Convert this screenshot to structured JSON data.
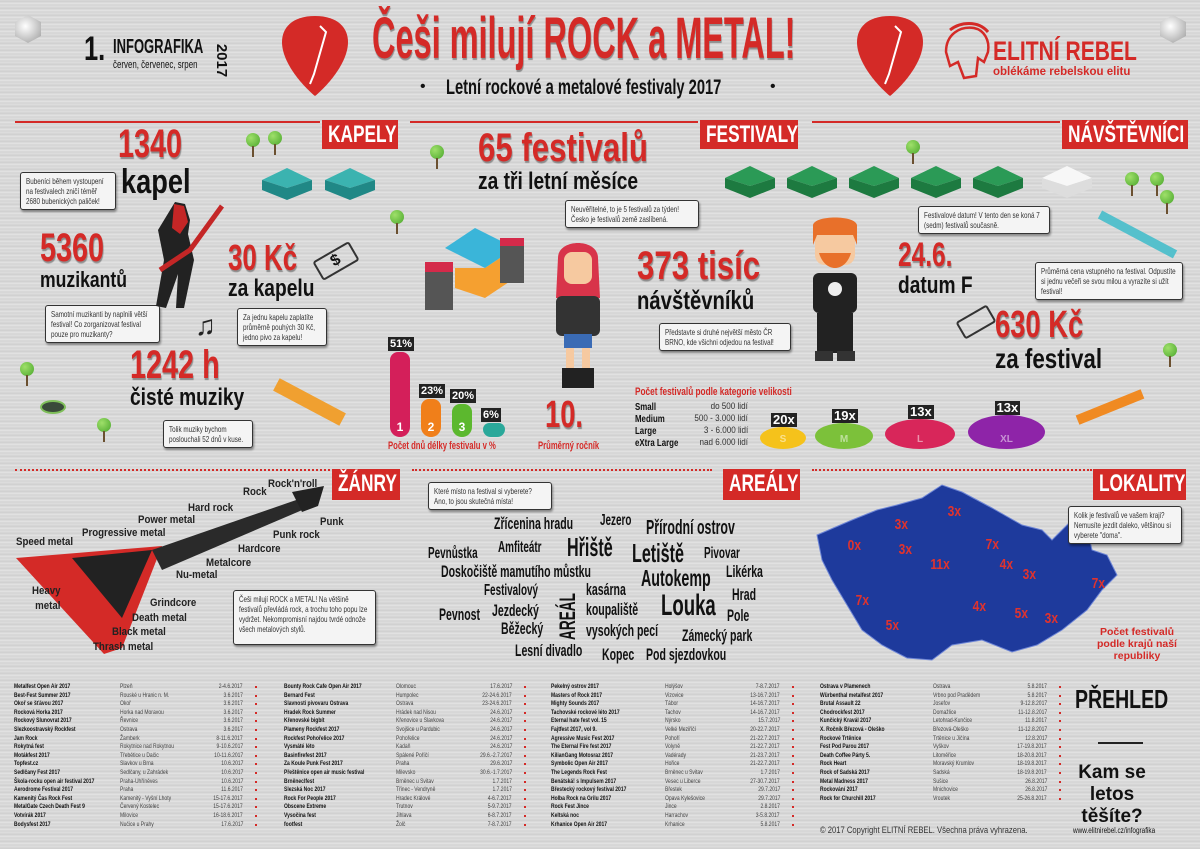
{
  "header": {
    "number": "1.",
    "label": "INFOGRAFIKA",
    "year": "2017",
    "months": "červen, červenec, srpen",
    "title": "Češi milují ROCK a METAL!",
    "subtitle": "Letní rockové a metalové festivaly 2017",
    "logo": {
      "name": "ELITNÍ REBEL",
      "tagline": "oblékáme rebelskou elitu"
    }
  },
  "sections": {
    "bands": "KAPELY",
    "festivals": "FESTIVALY",
    "visitors": "NÁVŠTĚVNÍCI",
    "genres": "ŽÁNRY",
    "venues": "AREÁLY",
    "locations": "LOKALITY"
  },
  "bands": {
    "count": "1340",
    "count_label": "kapel",
    "count_note": "Bubeníci během vystoupení na festivalech zničí téměř 2680 bubenických paliček!",
    "musicians": "5360",
    "musicians_label": "muzikantů",
    "musicians_note": "Samotní muzikanti by naplnili větší festival! Co zorganizovat festival pouze pro muzikanty?",
    "price": "30 Kč",
    "price_label": "za kapelu",
    "price_note": "Za jednu kapelu zaplatíte průměrně pouhých 30 Kč, jedno pivo za kapelu!",
    "hours": "1242 h",
    "hours_label": "čisté muziky",
    "hours_note": "Tolik muziky bychom poslouchali 52 dnů v kuse."
  },
  "festivals": {
    "count": "65 festivalů",
    "count_label": "za tři letní měsíce",
    "count_note": "Neuvěřitelné, to je 5 festivalů za týden! Česko je festivalů země zaslíbená.",
    "visitors": "373 tisíc",
    "visitors_label": "návštěvníků",
    "visitors_note": "Představte si druhé největší město ČR BRNO, kde všichni odjedou na festival!",
    "edition": "10.",
    "edition_label": "Průměrný ročník"
  },
  "chart_data": [
    {
      "type": "bar",
      "title": "Počet dnů délky festivalu v %",
      "categories": [
        "1",
        "2",
        "3",
        ""
      ],
      "values": [
        51,
        23,
        20,
        6
      ],
      "labels": [
        "51%",
        "23%",
        "20%",
        "6%"
      ],
      "colors": [
        "#d41f5a",
        "#f07f1a",
        "#5cb82e",
        "#2aa89a"
      ]
    },
    {
      "type": "table",
      "title": "Počet festivalů podle kategorie velikosti",
      "rows": [
        {
          "name": "Small",
          "range": "do 500 lidí",
          "count": "20x",
          "short": "S",
          "color": "#f5c21b"
        },
        {
          "name": "Medium",
          "range": "500 - 3.000 lidí",
          "count": "19x",
          "short": "M",
          "color": "#7cc13a"
        },
        {
          "name": "Large",
          "range": "3 - 6.000 lidí",
          "count": "13x",
          "short": "L",
          "color": "#d8265a"
        },
        {
          "name": "eXtra Large",
          "range": "nad 6.000 lidí",
          "count": "13x",
          "short": "XL",
          "color": "#8e24a8"
        }
      ]
    }
  ],
  "visitors": {
    "date": "24.6.",
    "date_label": "datum F",
    "date_note": "Festivalové datum! V tento den se koná 7 (sedm) festivalů současně.",
    "price": "630 Kč",
    "price_label": "za festival",
    "price_note": "Průměrná cena vstupného na festival. Odpustíte si jednu večeři se svou milou a vyrazíte si užít festival!"
  },
  "genres": {
    "note": "Češi milují ROCK a METAL! Na většině festivalů převládá rock, a trochu toho popu lze vydržet. Nekompromisní najdou tvrdé odnože všech metalových stylů.",
    "items": [
      "Rock'n'roll",
      "Rock",
      "Hard rock",
      "Power metal",
      "Progressive metal",
      "Speed metal",
      "Punk",
      "Punk rock",
      "Hardcore",
      "Metalcore",
      "Nu-metal",
      "Heavy metal",
      "Grindcore",
      "Death metal",
      "Black metal",
      "Thrash metal"
    ]
  },
  "venues": {
    "note": "Které místo na festival si vyberete? Ano, to jsou skutečná místa!",
    "words": [
      "Zřícenina hradu",
      "Jezero",
      "Přírodní ostrov",
      "Pevnůstka",
      "Amfiteátr",
      "Hřiště",
      "Letiště",
      "Pivovar",
      "Doskočiště mamutího můstku",
      "Autokemp",
      "Likérka",
      "Festivalový",
      "AREÁL",
      "kasárna",
      "Louka",
      "Hrad",
      "Pevnost",
      "Jezdecký",
      "koupaliště",
      "Pole",
      "Běžecký",
      "vysokých pecí",
      "Zámecký park",
      "Lesní divadlo",
      "Kopec",
      "Pod sjezdovkou"
    ]
  },
  "locations": {
    "note": "Kolik je festivalů ve vašem kraji? Nemusíte jezdit daleko, většinou si vyberete \"doma\".",
    "caption": "Počet festivalů podle krajů naší republiky",
    "map_color": "#1e3a9c",
    "regions": [
      "3x",
      "3x",
      "0x",
      "3x",
      "11x",
      "7x",
      "4x",
      "3x",
      "7x",
      "7x",
      "4x",
      "5x",
      "3x",
      "5x"
    ]
  },
  "overview": {
    "title": "PŘEHLED",
    "question": "Kam se letos těšíte?",
    "url": "www.elitnirebel.cz/infografika",
    "copyright": "© 2017 Copyright ELITNÍ REBEL. Všechna práva vyhrazena.",
    "festivals": [
      [
        "Metalfest Open Air 2017",
        "Plzeň",
        "2-4.6.2017"
      ],
      [
        "Best-Fest Summer 2017",
        "Rouské u Hranic n. M.",
        "3.6.2017"
      ],
      [
        "Okoř se šťávou 2017",
        "Okoř",
        "3.6.2017"
      ],
      [
        "Rocková Horka 2017",
        "Horka nad Moravou",
        "3.6.2017"
      ],
      [
        "Rockový Slunovrat 2017",
        "Řevnice",
        "3.6.2017"
      ],
      [
        "Slezkoostravský Rockfest",
        "Ostrava",
        "3.6.2017"
      ],
      [
        "Jam Rock",
        "Žamberk",
        "8-11.6.2017"
      ],
      [
        "Rokytná fest",
        "Rokytnice nad Rokytnou",
        "9-10.6.2017"
      ],
      [
        "Motákfest 2017",
        "Třebětice u Dačic",
        "10-11.6.2017"
      ],
      [
        "Topfest.cz",
        "Slavkov u Brna",
        "10.6.2017"
      ],
      [
        "Sedlčany Fest 2017",
        "Sedlčany, u Zahrádek",
        "10.6.2017"
      ],
      [
        "Škola-rocku open air festival 2017",
        "Praha-Uhříněves",
        "10.6.2017"
      ],
      [
        "Aerodrome Festival 2017",
        "Praha",
        "11.6.2017"
      ],
      [
        "Kamenitý Čas Rock Fest",
        "Kamenitý - Vyšní Lhoty",
        "15-17.6.2017"
      ],
      [
        "MetalGate Czech Death Fest 9",
        "Červený Kostelec",
        "15-17.6.2017"
      ],
      [
        "Votvírák 2017",
        "Milovice",
        "16-18.6.2017"
      ],
      [
        "Bodysfest 2017",
        "Nučice u Prahy",
        "17.6.2017"
      ],
      [
        "Bounty Rock Cafe Open Air 2017",
        "Olomouc",
        "17.6.2017"
      ],
      [
        "Bernard Fest",
        "Humpolec",
        "22-24.6.2017"
      ],
      [
        "Slavnosti pivovaru Ostrava",
        "Ostrava",
        "23-24.6.2017"
      ],
      [
        "Hradek Rock Summer",
        "Hrádek nad Nisou",
        "24.6.2017"
      ],
      [
        "Křenovské bigbít",
        "Křenovice u Slavkova",
        "24.6.2017"
      ],
      [
        "Plameny Rockfest 2017",
        "Svojšice u Pardubic",
        "24.6.2017"
      ],
      [
        "Rockfest Pohořelice 2017",
        "Pohořelice",
        "24.6.2017"
      ],
      [
        "Vysmáté léto",
        "Kadaň",
        "24.6.2017"
      ],
      [
        "Basinfirefest 2017",
        "Spálené Poříčí",
        "29.6.-2.7.2017"
      ],
      [
        "Za Koule Punk Fest 2017",
        "Praha",
        "29.6.2017"
      ],
      [
        "Přeštěnice open air music festival",
        "Milevsko",
        "30.6.-1.7.2017"
      ],
      [
        "Brněneclfest",
        "Brněnec u Svitav",
        "1.7.2017"
      ],
      [
        "Slezská Noc 2017",
        "Třinec - Vendryně",
        "1.7.2017"
      ],
      [
        "Rock For People 2017",
        "Hradec Králové",
        "4-6.7.2017"
      ],
      [
        "Obscene Extreme",
        "Trutnov",
        "5-9.7.2017"
      ],
      [
        "Vysočina fest",
        "Jihlava",
        "6-8.7.2017"
      ],
      [
        "footfest",
        "Žolč",
        "7-8.7.2017"
      ],
      [
        "Pekelný ostrov 2017",
        "Holýšov",
        "7-8.7.2017"
      ],
      [
        "Masters of Rock 2017",
        "Vizovice",
        "13-16.7.2017"
      ],
      [
        "Mighty Sounds 2017",
        "Tábor",
        "14-16.7.2017"
      ],
      [
        "Tachovské rockové léto 2017",
        "Tachov",
        "14-16.7.2017"
      ],
      [
        "Eternal hate fest vol. 15",
        "Nýrsko",
        "15.7.2017"
      ],
      [
        "Fajtfest 2017, vol 9.",
        "Velké Meziříčí",
        "20-22.7.2017"
      ],
      [
        "Agressive Music Fest 2017",
        "Pohoří",
        "21-22.7.2017"
      ],
      [
        "The Eternal Fire fest 2017",
        "Volyně",
        "21-22.7.2017"
      ],
      [
        "KilianGang Motosraz 2017",
        "Vadérady",
        "21-23.7.2017"
      ],
      [
        "Symbolic Open Air 2017",
        "Hořice",
        "21-22.7.2017"
      ],
      [
        "The Legends Rock Fest",
        "Brněnec u Svitav",
        "1.7.2017"
      ],
      [
        "Benátská! s Impulsem 2017",
        "Vesec u Liberce",
        "27-30.7.2017"
      ],
      [
        "Břestecký rockový festival 2017",
        "Břestek",
        "29.7.2017"
      ],
      [
        "Holba Rock na Grilu 2017",
        "Opava Kylešovice",
        "29.7.2017"
      ],
      [
        "Rock Fest Jince",
        "Jince",
        "2.8.2017"
      ],
      [
        "Keltská noc",
        "Harrachov",
        "3-5.8.2017"
      ],
      [
        "Krhanice Open Air 2017",
        "Krhanice",
        "5.8.2017"
      ],
      [
        "Ostrava v Plamenech",
        "Ostrava",
        "5.8.2017"
      ],
      [
        "Würbenthal metalfest 2017",
        "Vrbno pod Pradědem",
        "5.8.2017"
      ],
      [
        "Brutal Assault 22",
        "Josefov",
        "9-12.8.2017"
      ],
      [
        "Chodrockfest 2017",
        "Domažlice",
        "11-12.8.2017"
      ],
      [
        "Kunčický Kravál 2017",
        "Letohrad-Kunčice",
        "11.8.2017"
      ],
      [
        "X. Ročník Březová - Oleško",
        "Březová-Oleško",
        "11-12.8.2017"
      ],
      [
        "Rockové Trtěnice",
        "Trtěnice u Jičína",
        "12.8.2017"
      ],
      [
        "Fest Pod Parou 2017",
        "Vyškov",
        "17-19.8.2017"
      ],
      [
        "Death Coffee Párty 5.",
        "Litoměřice",
        "18-20.8.2017"
      ],
      [
        "Rock Heart",
        "Moravský Krumlov",
        "18-19.8.2017"
      ],
      [
        "Rock of Sadská 2017",
        "Sadská",
        "18-19.8.2017"
      ],
      [
        "Metal Madness 2017",
        "Sušice",
        "26.8.2017"
      ],
      [
        "Rockování 2017",
        "Mnichovice",
        "26.8.2017"
      ],
      [
        "Rock for Churchill 2017",
        "Vroutek",
        "25-26.8.2017"
      ]
    ]
  }
}
